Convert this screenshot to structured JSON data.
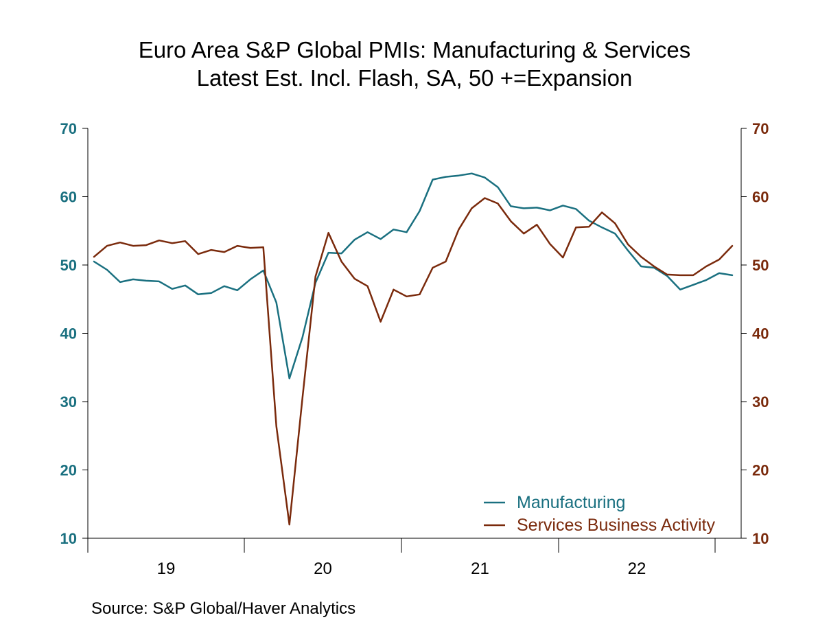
{
  "chart_data": {
    "type": "line",
    "title": "Euro Area S&P Global PMIs: Manufacturing & Services",
    "subtitle": "Latest Est. Incl. Flash, SA, 50 +=Expansion",
    "source": "Source:  S&P Global/Haver Analytics",
    "colors": {
      "manufacturing": "#1a7080",
      "services": "#7a2a0c",
      "axis": "#000000"
    },
    "y_left": {
      "ylim": [
        10,
        70
      ],
      "ticks": [
        "10",
        "20",
        "30",
        "40",
        "50",
        "60",
        "70"
      ]
    },
    "y_right": {
      "ylim": [
        10,
        70
      ],
      "ticks": [
        "10",
        "20",
        "30",
        "40",
        "50",
        "60",
        "70"
      ]
    },
    "x_range_months": [
      0,
      41
    ],
    "x_year_labels": [
      "19",
      "20",
      "21",
      "22"
    ],
    "legend": {
      "position": "bottom-right",
      "entries": [
        "Manufacturing",
        "Services Business Activity"
      ]
    },
    "series": [
      {
        "name": "Manufacturing",
        "values": [
          50.5,
          49.3,
          47.5,
          47.9,
          47.7,
          47.6,
          46.5,
          47.0,
          45.7,
          45.9,
          46.9,
          46.3,
          47.9,
          49.2,
          44.5,
          33.4,
          39.4,
          47.4,
          51.8,
          51.7,
          53.7,
          54.8,
          53.8,
          55.2,
          54.8,
          57.9,
          62.5,
          62.9,
          63.1,
          63.4,
          62.8,
          61.4,
          58.6,
          58.3,
          58.4,
          58.0,
          58.7,
          58.2,
          56.5,
          55.5,
          54.6,
          52.1,
          49.8,
          49.6,
          48.4,
          46.4,
          47.1,
          47.8,
          48.8,
          48.5
        ]
      },
      {
        "name": "Services Business Activity",
        "values": [
          51.2,
          52.8,
          53.3,
          52.8,
          52.9,
          53.6,
          53.2,
          53.5,
          51.6,
          52.2,
          51.9,
          52.8,
          52.5,
          52.6,
          26.4,
          12.0,
          30.5,
          48.3,
          54.7,
          50.5,
          48.0,
          46.9,
          41.7,
          46.4,
          45.4,
          45.7,
          49.6,
          50.5,
          55.2,
          58.3,
          59.8,
          59.0,
          56.4,
          54.6,
          55.9,
          53.1,
          51.1,
          55.5,
          55.6,
          57.7,
          56.1,
          53.0,
          51.2,
          49.8,
          48.6,
          48.5,
          48.5,
          49.8,
          50.8,
          52.8
        ]
      }
    ]
  }
}
